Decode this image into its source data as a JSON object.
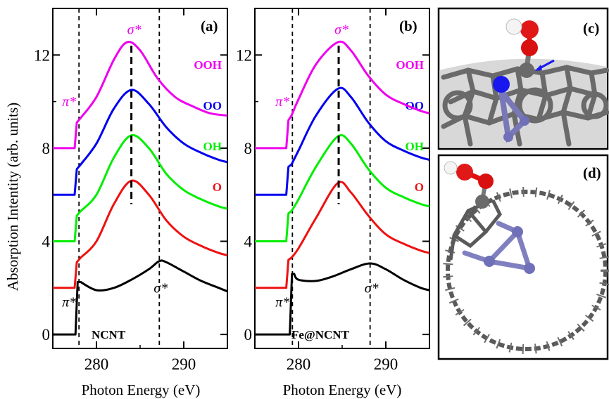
{
  "figure": {
    "ylabel": "Absorption Intentity (arb. units)",
    "y_ticks": [
      "0",
      "4",
      "8",
      "12"
    ]
  },
  "chart_data": [
    {
      "type": "line",
      "panel_label": "(a)",
      "material_label": "NCNT",
      "xlabel": "Photon Energy (eV)",
      "ylabel": "Absorption Intentity (arb. units)",
      "xlim": [
        275,
        295
      ],
      "ylim": [
        -0.6,
        14.0
      ],
      "x_ticks": [
        280,
        290
      ],
      "y_ticks": [
        0,
        4,
        8,
        12
      ],
      "pi_star_label": "π*",
      "sigma_star_label": "σ*",
      "dashed_lines_x": [
        278.0,
        287.2
      ],
      "sigma_star_dashed_x": 284.0,
      "series": [
        {
          "name": "",
          "color": "#000000",
          "offset": 0,
          "onset": 277.6,
          "edge_height": 2.25,
          "x": [
            278.2,
            280,
            282,
            284,
            286,
            287.2,
            288,
            290,
            292,
            294,
            295
          ],
          "y": [
            2.25,
            1.9,
            2.0,
            2.35,
            2.8,
            3.15,
            3.1,
            2.7,
            2.3,
            2.0,
            1.85
          ]
        },
        {
          "name": "O",
          "color": "#ee1111",
          "offset": 2,
          "onset": 277.5,
          "edge_height": 1.1,
          "x": [
            278.2,
            280,
            282,
            284,
            286,
            288,
            290,
            292,
            294,
            295
          ],
          "y": [
            3.3,
            4.0,
            5.6,
            6.6,
            6.0,
            4.9,
            4.2,
            3.8,
            3.5,
            3.4
          ]
        },
        {
          "name": "OH",
          "color": "#00ee00",
          "offset": 4,
          "onset": 277.5,
          "edge_height": 1.1,
          "x": [
            278.2,
            280,
            282,
            284,
            286,
            288,
            290,
            292,
            294,
            295
          ],
          "y": [
            5.3,
            6.0,
            7.6,
            8.55,
            8.0,
            6.9,
            6.2,
            5.8,
            5.5,
            5.4
          ]
        },
        {
          "name": "OO",
          "color": "#0000ee",
          "offset": 6,
          "onset": 277.5,
          "edge_height": 1.1,
          "x": [
            278.2,
            280,
            282,
            284,
            286,
            288,
            290,
            292,
            294,
            295
          ],
          "y": [
            7.3,
            8.2,
            9.7,
            10.5,
            9.9,
            8.9,
            8.2,
            7.8,
            7.5,
            7.4
          ]
        },
        {
          "name": "OOH",
          "color": "#ee00ee",
          "offset": 8,
          "onset": 277.5,
          "edge_height": 1.1,
          "x": [
            278.2,
            280,
            282,
            283.5,
            285,
            287,
            289,
            291,
            293,
            295
          ],
          "y": [
            9.3,
            10.2,
            11.8,
            12.55,
            12.2,
            11.0,
            10.2,
            9.8,
            9.5,
            9.4
          ]
        }
      ]
    },
    {
      "type": "line",
      "panel_label": "(b)",
      "material_label": "Fe@NCNT",
      "xlabel": "Photon Energy (eV)",
      "ylabel": "",
      "xlim": [
        275,
        295
      ],
      "ylim": [
        -0.6,
        14.0
      ],
      "x_ticks": [
        280,
        290
      ],
      "y_ticks": [
        0,
        4,
        8,
        12
      ],
      "pi_star_label": "π*",
      "sigma_star_label": "σ*",
      "dashed_lines_x": [
        279.3,
        288.2
      ],
      "sigma_star_dashed_x": 284.6,
      "series": [
        {
          "name": "",
          "color": "#000000",
          "offset": 0,
          "onset": 279.0,
          "edge_height": 2.6,
          "x": [
            279.5,
            280,
            282,
            284,
            286,
            288.2,
            290,
            292,
            294,
            295
          ],
          "y": [
            2.6,
            2.35,
            2.3,
            2.5,
            2.8,
            3.05,
            2.8,
            2.35,
            2.0,
            1.9
          ]
        },
        {
          "name": "O",
          "color": "#ee1111",
          "offset": 2,
          "onset": 278.6,
          "edge_height": 1.2,
          "x": [
            279.2,
            280,
            282,
            284.5,
            286,
            288,
            290,
            292,
            294,
            295
          ],
          "y": [
            3.3,
            3.7,
            5.0,
            6.5,
            6.1,
            5.1,
            4.3,
            3.9,
            3.6,
            3.5
          ]
        },
        {
          "name": "OH",
          "color": "#00ee00",
          "offset": 4,
          "onset": 278.6,
          "edge_height": 1.2,
          "x": [
            279.2,
            280,
            282,
            284.5,
            286,
            288,
            290,
            292,
            294,
            295
          ],
          "y": [
            5.3,
            5.8,
            7.2,
            8.5,
            8.2,
            7.1,
            6.3,
            5.9,
            5.6,
            5.5
          ]
        },
        {
          "name": "OO",
          "color": "#0000ee",
          "offset": 6,
          "onset": 278.6,
          "edge_height": 1.2,
          "x": [
            279.2,
            280,
            282,
            284.5,
            286,
            288,
            290,
            292,
            294,
            295
          ],
          "y": [
            7.3,
            7.9,
            9.4,
            10.55,
            10.2,
            9.1,
            8.3,
            7.9,
            7.6,
            7.5
          ]
        },
        {
          "name": "OOH",
          "color": "#ee00ee",
          "offset": 8,
          "onset": 278.6,
          "edge_height": 1.2,
          "x": [
            279.2,
            280,
            282,
            284.5,
            286,
            288,
            290,
            292,
            294,
            295
          ],
          "y": [
            9.4,
            10.1,
            11.6,
            12.55,
            12.2,
            11.1,
            10.3,
            9.9,
            9.6,
            9.5
          ]
        }
      ]
    }
  ],
  "structures": [
    {
      "panel_label": "(c)"
    },
    {
      "panel_label": "(d)"
    }
  ],
  "colors": {
    "carbon": "#666666",
    "nitrogen": "#1010ee",
    "oxygen": "#e01010",
    "hydrogen": "#f0f0f0",
    "iron": "#7070b8"
  }
}
